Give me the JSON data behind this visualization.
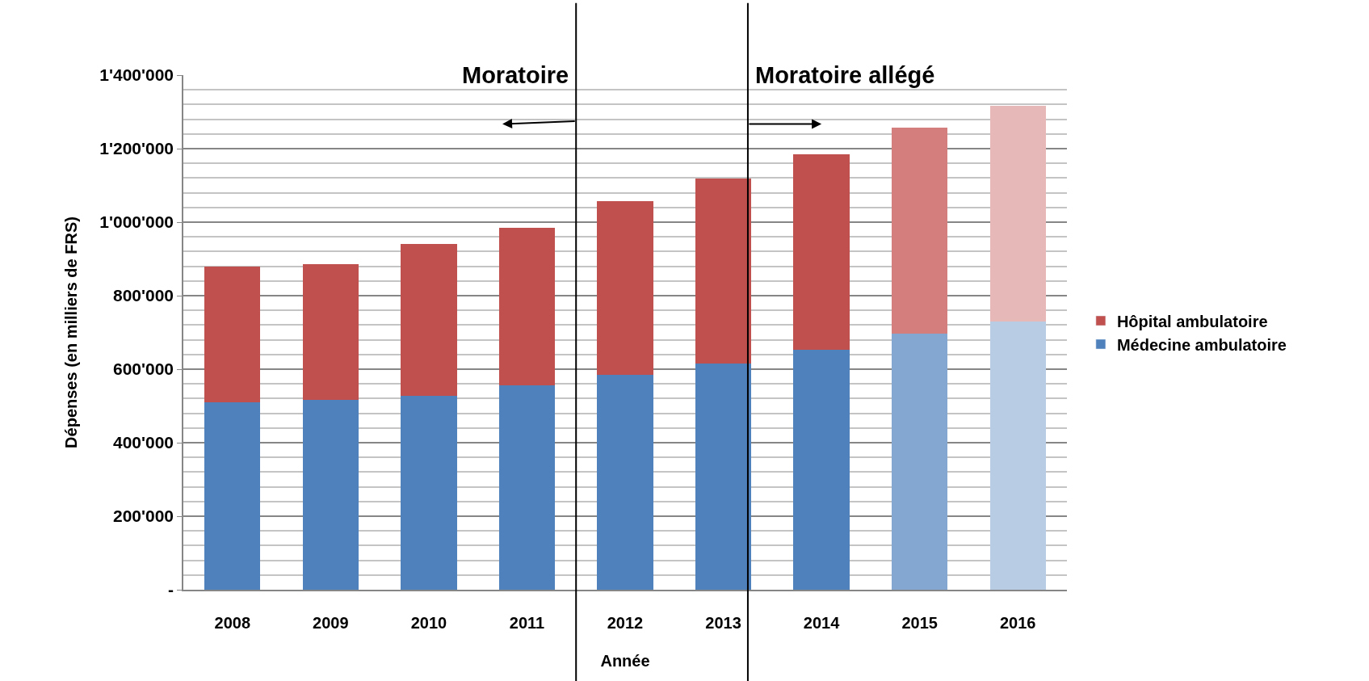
{
  "chart_data": {
    "type": "bar",
    "stacked": true,
    "xlabel": "Année",
    "ylabel": "Dépenses (en milliers de FRS)",
    "x": [
      2008,
      2009,
      2010,
      2011,
      2012,
      2013,
      2014,
      2015,
      2016
    ],
    "xlim": [
      2007.5,
      2016.5
    ],
    "xticks": [
      2008,
      2009,
      2010,
      2011,
      2012,
      2013,
      2014,
      2015,
      2016
    ],
    "series": [
      {
        "name": "Médecine ambulatoire",
        "color": "#4f81bd",
        "colors": [
          "#4f81bd",
          "#4f81bd",
          "#4f81bd",
          "#4f81bd",
          "#4f81bd",
          "#4f81bd",
          "#4f81bd",
          "#84a7d1",
          "#b8cce4"
        ],
        "values": [
          510000,
          516000,
          528000,
          556000,
          584000,
          616000,
          652000,
          696000,
          730000
        ]
      },
      {
        "name": "Hôpital ambulatoire",
        "color": "#c0504d",
        "colors": [
          "#c0504d",
          "#c0504d",
          "#c0504d",
          "#c0504d",
          "#c0504d",
          "#c0504d",
          "#c0504d",
          "#d47f7e",
          "#e6b8b7"
        ],
        "values": [
          370000,
          370000,
          412000,
          428000,
          473000,
          503000,
          533000,
          562000,
          587000
        ]
      }
    ],
    "ylim": [
      0,
      1400000
    ],
    "yticks": [
      {
        "value": 0,
        "label": "-"
      },
      {
        "value": 40000,
        "label": null
      },
      {
        "value": 80000,
        "label": null
      },
      {
        "value": 120000,
        "label": null
      },
      {
        "value": 160000,
        "label": null
      },
      {
        "value": 200000,
        "label": "200'000"
      },
      {
        "value": 240000,
        "label": null
      },
      {
        "value": 280000,
        "label": null
      },
      {
        "value": 320000,
        "label": null
      },
      {
        "value": 360000,
        "label": null
      },
      {
        "value": 400000,
        "label": "400'000"
      },
      {
        "value": 440000,
        "label": null
      },
      {
        "value": 480000,
        "label": null
      },
      {
        "value": 520000,
        "label": null
      },
      {
        "value": 560000,
        "label": null
      },
      {
        "value": 600000,
        "label": "600'000"
      },
      {
        "value": 640000,
        "label": null
      },
      {
        "value": 680000,
        "label": null
      },
      {
        "value": 720000,
        "label": null
      },
      {
        "value": 760000,
        "label": null
      },
      {
        "value": 800000,
        "label": "800'000"
      },
      {
        "value": 840000,
        "label": null
      },
      {
        "value": 880000,
        "label": null
      },
      {
        "value": 920000,
        "label": null
      },
      {
        "value": 960000,
        "label": null
      },
      {
        "value": 1000000,
        "label": "1'000'000"
      },
      {
        "value": 1040000,
        "label": null
      },
      {
        "value": 1080000,
        "label": null
      },
      {
        "value": 1120000,
        "label": null
      },
      {
        "value": 1160000,
        "label": null
      },
      {
        "value": 1200000,
        "label": "1'200'000"
      },
      {
        "value": 1240000,
        "label": null
      },
      {
        "value": 1280000,
        "label": null
      },
      {
        "value": 1320000,
        "label": null
      },
      {
        "value": 1360000,
        "label": null
      },
      {
        "value": 1400000,
        "label": "1'400'000"
      }
    ],
    "grid": "y",
    "legend": "right",
    "ref_lines": [
      {
        "axis": "x",
        "value": 2011.5,
        "label": "Moratoire",
        "color": "#000000"
      },
      {
        "axis": "x",
        "value": 2013.25,
        "label": "Moratoire allégé",
        "color": "#000000"
      }
    ]
  }
}
